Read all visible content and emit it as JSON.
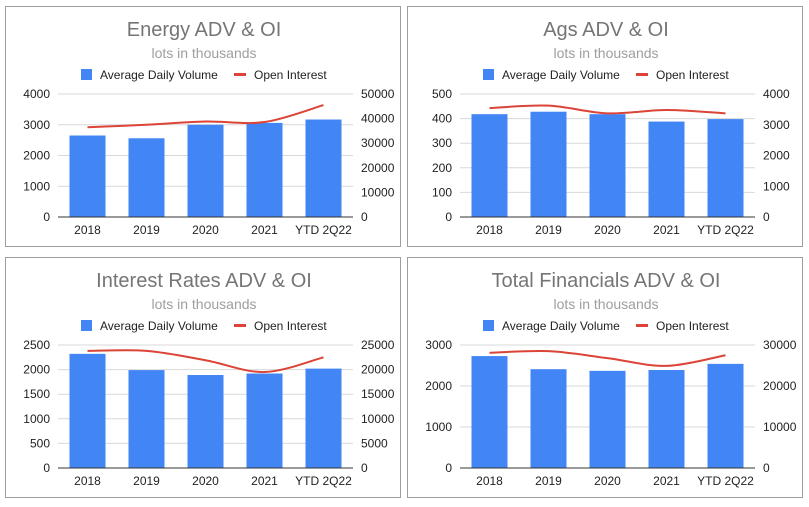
{
  "legend": {
    "bar_label": "Average Daily Volume",
    "line_label": "Open Interest"
  },
  "colors": {
    "bar": "#4285f4",
    "line": "#db4437",
    "grid": "#d9d9d9",
    "axis": "#333333"
  },
  "chart_data": [
    {
      "type": "bar",
      "title": "Energy ADV & OI",
      "subtitle": "lots in thousands",
      "categories": [
        "2018",
        "2019",
        "2020",
        "2021",
        "YTD 2Q22"
      ],
      "series": [
        {
          "name": "Average Daily Volume",
          "type": "bar",
          "axis": "left",
          "values": [
            2650,
            2560,
            3000,
            3060,
            3170
          ]
        },
        {
          "name": "Open Interest",
          "type": "line",
          "axis": "right",
          "values": [
            36500,
            37500,
            38800,
            38600,
            45500
          ]
        }
      ],
      "ylim_left": [
        0,
        4000
      ],
      "yticks_left": [
        0,
        1000,
        2000,
        3000,
        4000
      ],
      "ylim_right": [
        0,
        50000
      ],
      "yticks_right": [
        0,
        10000,
        20000,
        30000,
        40000,
        50000
      ]
    },
    {
      "type": "bar",
      "title": "Ags ADV & OI",
      "subtitle": "lots in thousands",
      "categories": [
        "2018",
        "2019",
        "2020",
        "2021",
        "YTD 2Q22"
      ],
      "series": [
        {
          "name": "Average Daily Volume",
          "type": "bar",
          "axis": "left",
          "values": [
            418,
            428,
            418,
            388,
            398
          ]
        },
        {
          "name": "Open Interest",
          "type": "line",
          "axis": "right",
          "values": [
            3540,
            3620,
            3370,
            3480,
            3370
          ]
        }
      ],
      "ylim_left": [
        0,
        500
      ],
      "yticks_left": [
        0,
        100,
        200,
        300,
        400,
        500
      ],
      "ylim_right": [
        0,
        4000
      ],
      "yticks_right": [
        0,
        1000,
        2000,
        3000,
        4000
      ]
    },
    {
      "type": "bar",
      "title": "Interest Rates ADV & OI",
      "subtitle": "lots in thousands",
      "categories": [
        "2018",
        "2019",
        "2020",
        "2021",
        "YTD 2Q22"
      ],
      "series": [
        {
          "name": "Average Daily Volume",
          "type": "bar",
          "axis": "left",
          "values": [
            2320,
            1990,
            1890,
            1920,
            2020
          ]
        },
        {
          "name": "Open Interest",
          "type": "line",
          "axis": "right",
          "values": [
            23800,
            23800,
            21900,
            19500,
            22500
          ]
        }
      ],
      "ylim_left": [
        0,
        2500
      ],
      "yticks_left": [
        0,
        500,
        1000,
        1500,
        2000,
        2500
      ],
      "ylim_right": [
        0,
        25000
      ],
      "yticks_right": [
        0,
        5000,
        10000,
        15000,
        20000,
        25000
      ]
    },
    {
      "type": "bar",
      "title": "Total Financials ADV & OI",
      "subtitle": "lots in thousands",
      "categories": [
        "2018",
        "2019",
        "2020",
        "2021",
        "YTD 2Q22"
      ],
      "series": [
        {
          "name": "Average Daily Volume",
          "type": "bar",
          "axis": "left",
          "values": [
            2730,
            2410,
            2370,
            2390,
            2540
          ]
        },
        {
          "name": "Open Interest",
          "type": "line",
          "axis": "right",
          "values": [
            28100,
            28500,
            26800,
            24900,
            27500
          ]
        }
      ],
      "ylim_left": [
        0,
        3000
      ],
      "yticks_left": [
        0,
        1000,
        2000,
        3000
      ],
      "ylim_right": [
        0,
        30000
      ],
      "yticks_right": [
        0,
        10000,
        20000,
        30000
      ]
    }
  ]
}
